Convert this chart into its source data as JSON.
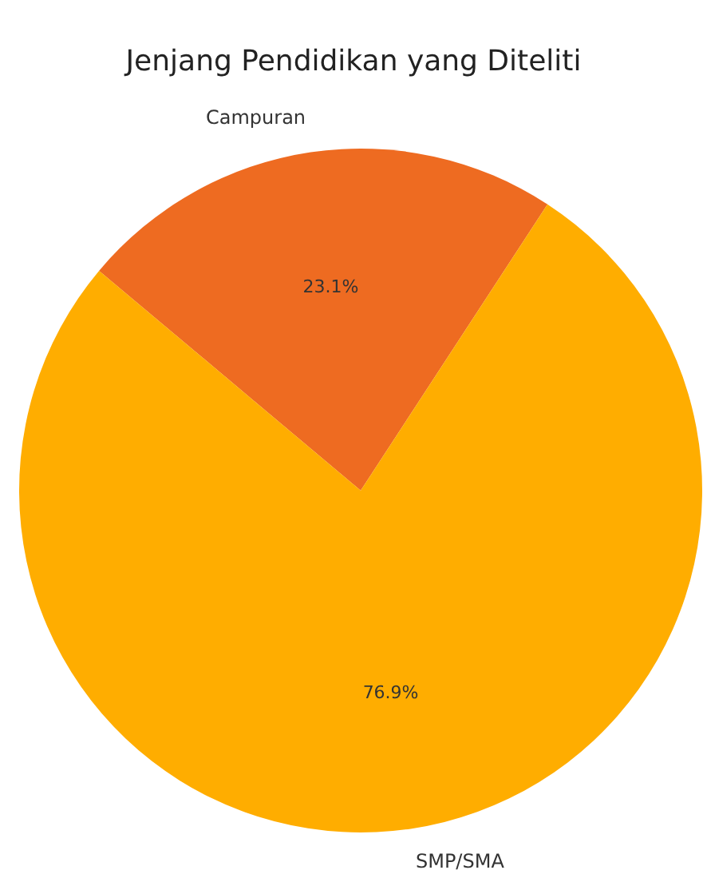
{
  "chart_data": {
    "type": "pie",
    "title": "Jenjang Pendidikan yang Diteliti",
    "categories": [
      "Campuran",
      "SMP/SMA"
    ],
    "values": [
      23.1,
      76.9
    ],
    "colors": [
      "#ee6b21",
      "#ffad00"
    ],
    "value_labels": [
      "23.1%",
      "76.9%"
    ]
  }
}
